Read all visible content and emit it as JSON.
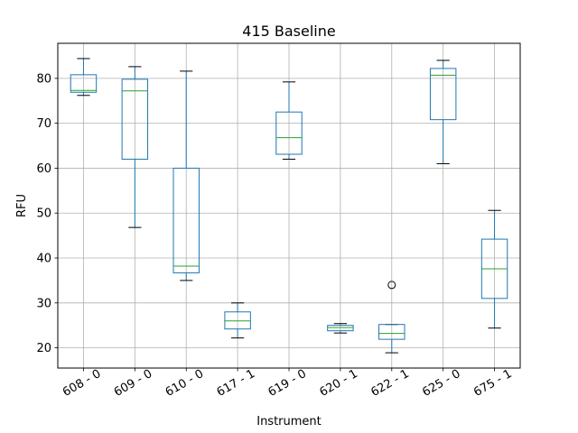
{
  "chart_data": {
    "type": "box",
    "title": "415 Baseline",
    "xlabel": "Instrument",
    "ylabel": "RFU",
    "ylim": [
      15.5,
      87.8
    ],
    "yticks": [
      20,
      30,
      40,
      50,
      60,
      70,
      80
    ],
    "grid": true,
    "colors": {
      "box": "#1f77b4",
      "median": "#2ca02c",
      "whisker_cap": "#000000",
      "grid": "#b0b0b0"
    },
    "categories": [
      "608 - 0",
      "609 - 0",
      "610 - 0",
      "617 - 1",
      "619 - 0",
      "620 - 1",
      "622 - 1",
      "625 - 0",
      "675 - 1"
    ],
    "boxes": [
      {
        "category": "608 - 0",
        "whisker_low": 76.2,
        "q1": 76.9,
        "median": 77.3,
        "q3": 80.8,
        "whisker_high": 84.4,
        "outliers": []
      },
      {
        "category": "609 - 0",
        "whisker_low": 46.8,
        "q1": 62.0,
        "median": 77.2,
        "q3": 79.8,
        "whisker_high": 82.6,
        "outliers": []
      },
      {
        "category": "610 - 0",
        "whisker_low": 35.0,
        "q1": 36.7,
        "median": 38.2,
        "q3": 60.0,
        "whisker_high": 81.6,
        "outliers": []
      },
      {
        "category": "617 - 1",
        "whisker_low": 22.2,
        "q1": 24.2,
        "median": 26.0,
        "q3": 28.0,
        "whisker_high": 30.0,
        "outliers": []
      },
      {
        "category": "619 - 0",
        "whisker_low": 62.0,
        "q1": 63.1,
        "median": 66.8,
        "q3": 72.5,
        "whisker_high": 79.2,
        "outliers": []
      },
      {
        "category": "620 - 1",
        "whisker_low": 23.3,
        "q1": 23.8,
        "median": 24.5,
        "q3": 25.0,
        "whisker_high": 25.4,
        "outliers": []
      },
      {
        "category": "622 - 1",
        "whisker_low": 18.9,
        "q1": 21.9,
        "median": 23.2,
        "q3": 25.2,
        "whisker_high": 25.2,
        "outliers": [
          34.0
        ]
      },
      {
        "category": "625 - 0",
        "whisker_low": 61.0,
        "q1": 70.8,
        "median": 80.7,
        "q3": 82.2,
        "whisker_high": 84.0,
        "outliers": []
      },
      {
        "category": "675 - 1",
        "whisker_low": 24.4,
        "q1": 31.0,
        "median": 37.6,
        "q3": 44.2,
        "whisker_high": 50.6,
        "outliers": []
      }
    ]
  }
}
